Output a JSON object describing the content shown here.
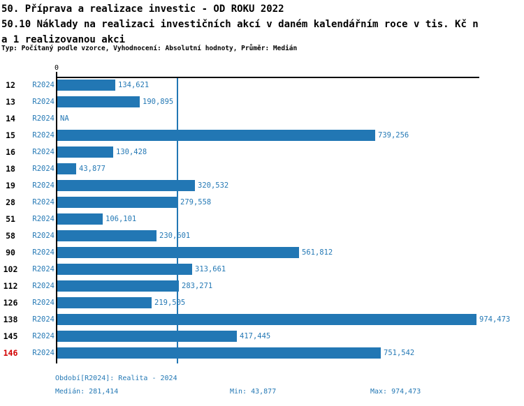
{
  "title": {
    "line1": "50. Příprava a realizace investic - OD ROKU 2022",
    "line2": "50.10 Náklady na realizaci investičních akcí v daném kalendářním roce v tis. Kč n",
    "line3": "a 1 realizovanou akci",
    "subtitle": "Typ: Počítaný podle vzorce, Vyhodnocení: Absolutní hodnoty, Průměr: Medián"
  },
  "chart_data": {
    "type": "bar",
    "orientation": "horizontal",
    "axis_zero_label": "0",
    "series_label": "R2024",
    "na_label": "NA",
    "categories": [
      "12",
      "13",
      "14",
      "15",
      "16",
      "18",
      "19",
      "28",
      "51",
      "58",
      "90",
      "102",
      "112",
      "126",
      "138",
      "145",
      "146"
    ],
    "values": [
      134621,
      190895,
      null,
      739256,
      130428,
      43877,
      320532,
      279558,
      106101,
      230601,
      561812,
      313661,
      283271,
      219505,
      974473,
      417445,
      751542
    ],
    "value_labels": [
      "134,621",
      "190,895",
      "NA",
      "739,256",
      "130,428",
      "43,877",
      "320,532",
      "279,558",
      "106,101",
      "230,601",
      "561,812",
      "313,661",
      "283,271",
      "219,505",
      "974,473",
      "417,445",
      "751,542"
    ],
    "highlighted_category": "146",
    "median_value": 281414,
    "xlim": [
      0,
      974473
    ],
    "grid": false,
    "legend": false
  },
  "footer": {
    "period": "Období[R2024]: Realita - 2024",
    "median": "Medián: 281,414",
    "min": "Min: 43,877",
    "max": "Max: 974,473"
  },
  "colors": {
    "bar": "#2277b4",
    "text_blue": "#2579b5",
    "highlight_red": "#d20000",
    "axis_black": "#000000"
  }
}
